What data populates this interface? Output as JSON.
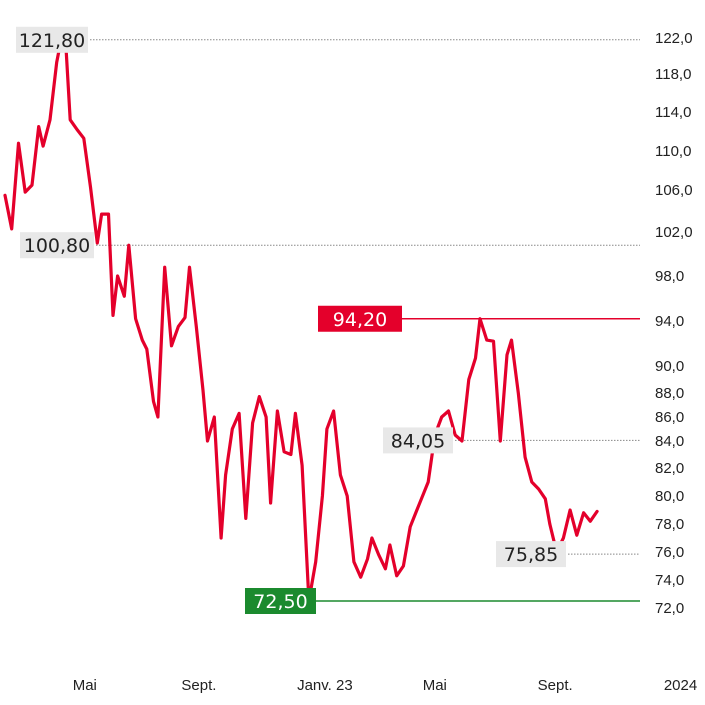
{
  "chart_data": {
    "type": "line",
    "colors": {
      "series": "#e4002b",
      "high": "#e4002b",
      "low": "#1b8a2e",
      "label_bg": "#e8e8e8",
      "gridline": "#888888"
    },
    "y_ticks": [
      "72,0",
      "74,0",
      "76,0",
      "78,0",
      "80,0",
      "82,0",
      "84,0",
      "86,0",
      "88,0",
      "90,0",
      "94,0",
      "98,0",
      "102,0",
      "106,0",
      "110,0",
      "114,0",
      "118,0",
      "122,0"
    ],
    "y_tick_values": [
      72,
      74,
      76,
      78,
      80,
      82,
      84,
      86,
      88,
      90,
      94,
      98,
      102,
      106,
      110,
      114,
      118,
      122
    ],
    "x_ticks": [
      {
        "label": "Mai",
        "x": 0.114
      },
      {
        "label": "Sept.",
        "x": 0.277
      },
      {
        "label": "Janv. 23",
        "x": 0.457
      },
      {
        "label": "Mai",
        "x": 0.614
      },
      {
        "label": "Sept.",
        "x": 0.786
      },
      {
        "label": "2024",
        "x": 0.965
      }
    ],
    "annotations": [
      {
        "id": "ann-121",
        "label": "121,80",
        "value": 121.8,
        "style": "grey"
      },
      {
        "id": "ann-100",
        "label": "100,80",
        "value": 100.8,
        "style": "grey"
      },
      {
        "id": "ann-94",
        "label": "94,20",
        "value": 94.2,
        "style": "high"
      },
      {
        "id": "ann-84",
        "label": "84,05",
        "value": 84.05,
        "style": "grey"
      },
      {
        "id": "ann-75",
        "label": "75,85",
        "value": 75.85,
        "style": "grey"
      },
      {
        "id": "ann-72",
        "label": "72,50",
        "value": 72.5,
        "style": "low"
      }
    ],
    "series": [
      {
        "points": [
          [
            0.0,
            105.5
          ],
          [
            0.0096,
            102.3
          ],
          [
            0.0193,
            110.8
          ],
          [
            0.0289,
            105.8
          ],
          [
            0.0386,
            106.5
          ],
          [
            0.0482,
            112.5
          ],
          [
            0.0545,
            110.5
          ],
          [
            0.0643,
            113.2
          ],
          [
            0.0739,
            119.3
          ],
          [
            0.0802,
            121.8
          ],
          [
            0.0868,
            121.3
          ],
          [
            0.0932,
            113.2
          ],
          [
            0.1029,
            112.2
          ],
          [
            0.1125,
            111.3
          ],
          [
            0.1222,
            106.3
          ],
          [
            0.1318,
            101.0
          ],
          [
            0.138,
            103.7
          ],
          [
            0.1479,
            103.7
          ],
          [
            0.1543,
            94.5
          ],
          [
            0.1608,
            98.0
          ],
          [
            0.1704,
            96.2
          ],
          [
            0.1768,
            100.8
          ],
          [
            0.1866,
            94.2
          ],
          [
            0.1961,
            92.3
          ],
          [
            0.2025,
            91.5
          ],
          [
            0.2121,
            87.3
          ],
          [
            0.2185,
            86.0
          ],
          [
            0.2282,
            98.8
          ],
          [
            0.2379,
            91.8
          ],
          [
            0.2475,
            93.5
          ],
          [
            0.2572,
            94.3
          ],
          [
            0.2636,
            98.8
          ],
          [
            0.2733,
            93.5
          ],
          [
            0.2829,
            88.2
          ],
          [
            0.2893,
            84.0
          ],
          [
            0.299,
            86.0
          ],
          [
            0.3087,
            77.0
          ],
          [
            0.3151,
            81.5
          ],
          [
            0.3247,
            85.0
          ],
          [
            0.3344,
            86.3
          ],
          [
            0.344,
            78.4
          ],
          [
            0.3537,
            85.5
          ],
          [
            0.3633,
            87.7
          ],
          [
            0.373,
            86.0
          ],
          [
            0.3794,
            79.5
          ],
          [
            0.3891,
            86.5
          ],
          [
            0.3987,
            83.2
          ],
          [
            0.4084,
            83.0
          ],
          [
            0.4148,
            86.3
          ],
          [
            0.4245,
            82.2
          ],
          [
            0.4341,
            72.5
          ],
          [
            0.4438,
            75.3
          ],
          [
            0.4534,
            80.0
          ],
          [
            0.4599,
            85.0
          ],
          [
            0.4695,
            86.5
          ],
          [
            0.4792,
            81.5
          ],
          [
            0.4888,
            80.0
          ],
          [
            0.4985,
            75.3
          ],
          [
            0.5081,
            74.2
          ],
          [
            0.5178,
            75.5
          ],
          [
            0.5242,
            77.0
          ],
          [
            0.5338,
            75.8
          ],
          [
            0.5435,
            74.8
          ],
          [
            0.5499,
            76.5
          ],
          [
            0.5596,
            74.3
          ],
          [
            0.5692,
            75.0
          ],
          [
            0.5789,
            77.8
          ],
          [
            0.5885,
            79.0
          ],
          [
            0.5982,
            80.2
          ],
          [
            0.6046,
            81.0
          ],
          [
            0.6142,
            84.5
          ],
          [
            0.6239,
            86.0
          ],
          [
            0.6336,
            86.5
          ],
          [
            0.6432,
            84.5
          ],
          [
            0.6529,
            84.0
          ],
          [
            0.6625,
            89.0
          ],
          [
            0.6722,
            90.7
          ],
          [
            0.6786,
            94.2
          ],
          [
            0.6883,
            92.3
          ],
          [
            0.6979,
            92.2
          ],
          [
            0.7076,
            84.0
          ],
          [
            0.7172,
            91.0
          ],
          [
            0.7236,
            92.3
          ],
          [
            0.7333,
            88.0
          ],
          [
            0.743,
            82.8
          ],
          [
            0.7526,
            81.0
          ],
          [
            0.7623,
            80.5
          ],
          [
            0.7719,
            79.8
          ],
          [
            0.7783,
            78.0
          ],
          [
            0.788,
            76.0
          ],
          [
            0.7977,
            77.0
          ],
          [
            0.8073,
            79.0
          ],
          [
            0.8169,
            77.2
          ],
          [
            0.8266,
            78.8
          ],
          [
            0.8362,
            78.2
          ],
          [
            0.8459,
            78.9
          ]
        ]
      }
    ]
  }
}
